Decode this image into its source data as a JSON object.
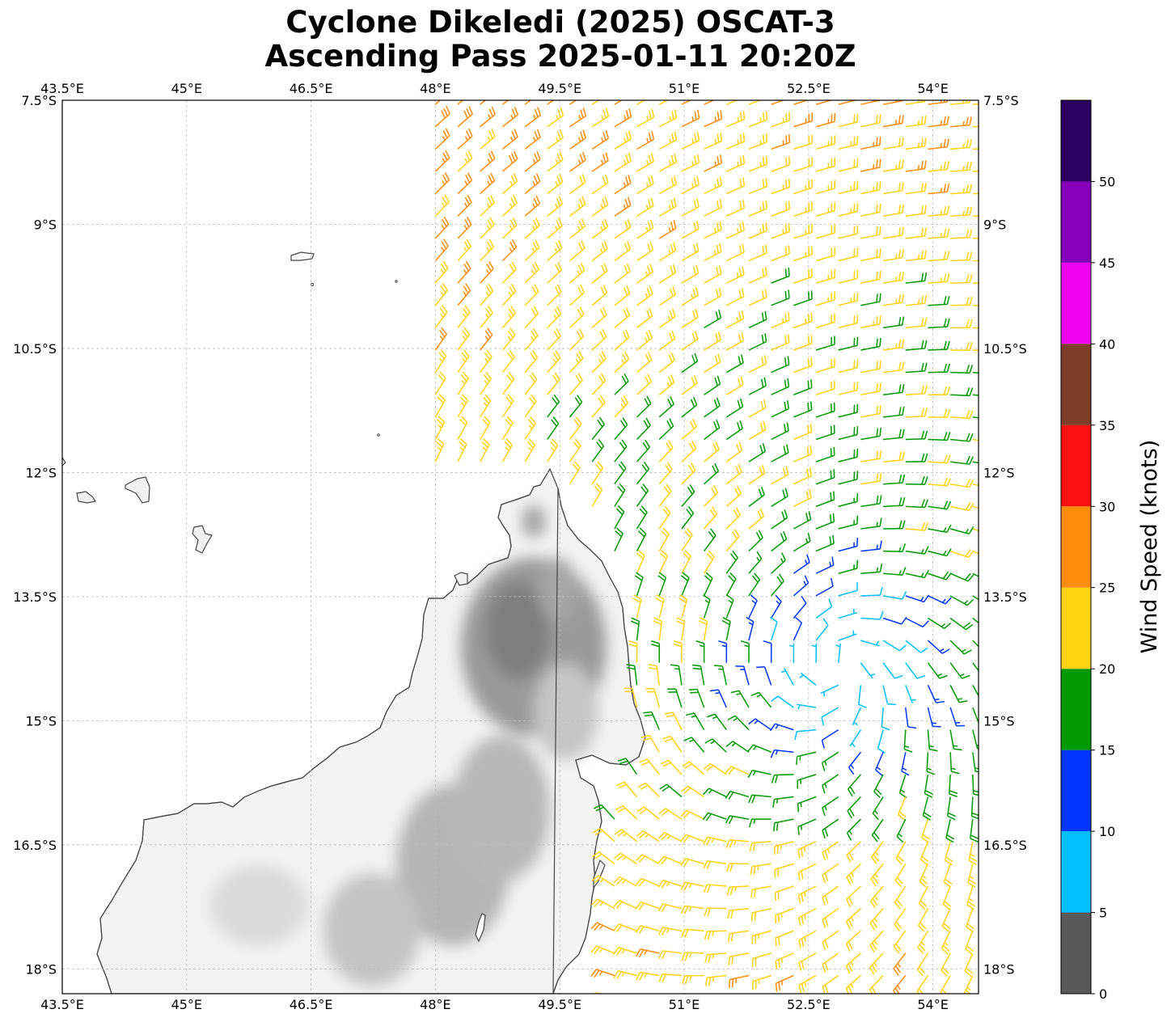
{
  "title": {
    "line1": "Cyclone Dikeledi (2025) OSCAT-3",
    "line2": "Ascending Pass 2025-01-11 20:20Z"
  },
  "map": {
    "projection": "PlateCarree",
    "lon_range": [
      43.5,
      54.55
    ],
    "lat_range": [
      -18.3,
      -7.5
    ],
    "lon_ticks": [
      "43.5°E",
      "45°E",
      "46.5°E",
      "48°E",
      "49.5°E",
      "51°E",
      "52.5°E",
      "54°E"
    ],
    "lat_ticks": [
      "7.5°S",
      "9°S",
      "10.5°S",
      "12°S",
      "13.5°S",
      "15°S",
      "16.5°S",
      "18°S"
    ],
    "lon_tick_values": [
      43.5,
      45,
      46.5,
      48,
      49.5,
      51,
      52.5,
      54
    ],
    "lat_tick_values": [
      -7.5,
      -9,
      -10.5,
      -12,
      -13.5,
      -15,
      -16.5,
      -18
    ],
    "gridlines": true,
    "land_shading": "grayscale terrain (Madagascar)",
    "coastline_color": "#444444",
    "barb_field": "Scatterometer wind barbs colored by speed; cyclonic circulation centered near 14.3°S, 52.9°E"
  },
  "colorbar": {
    "label": "Wind Speed (knots)",
    "bins": [
      {
        "from": 0,
        "to": 5,
        "color": "#595959"
      },
      {
        "from": 5,
        "to": 10,
        "color": "#00bfff"
      },
      {
        "from": 10,
        "to": 15,
        "color": "#0036ff"
      },
      {
        "from": 15,
        "to": 20,
        "color": "#009900"
      },
      {
        "from": 20,
        "to": 25,
        "color": "#ffd20f"
      },
      {
        "from": 25,
        "to": 30,
        "color": "#ff8c0a"
      },
      {
        "from": 30,
        "to": 35,
        "color": "#ff0f0f"
      },
      {
        "from": 35,
        "to": 40,
        "color": "#7d3d28"
      },
      {
        "from": 40,
        "to": 45,
        "color": "#f000f0"
      },
      {
        "from": 45,
        "to": 50,
        "color": "#8600bb"
      },
      {
        "from": 50,
        "to": 55,
        "color": "#2b005f"
      }
    ],
    "tick_labels": [
      "0",
      "5",
      "10",
      "15",
      "20",
      "25",
      "30",
      "35",
      "40",
      "45",
      "50"
    ]
  }
}
